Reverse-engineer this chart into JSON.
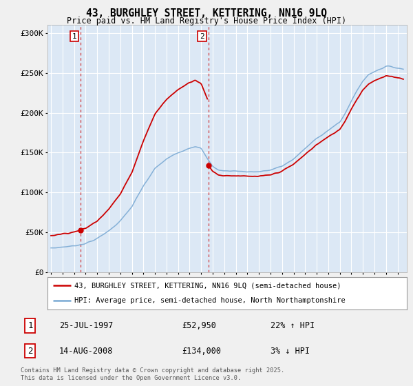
{
  "title": "43, BURGHLEY STREET, KETTERING, NN16 9LQ",
  "subtitle": "Price paid vs. HM Land Registry's House Price Index (HPI)",
  "ylim": [
    0,
    310000
  ],
  "yticks": [
    0,
    50000,
    100000,
    150000,
    200000,
    250000,
    300000
  ],
  "ytick_labels": [
    "£0",
    "£50K",
    "£100K",
    "£150K",
    "£200K",
    "£250K",
    "£300K"
  ],
  "xmin": 1994.7,
  "xmax": 2025.8,
  "bg_color": "#dce8f5",
  "fig_color": "#f0f0f0",
  "grid_color": "#ffffff",
  "red_color": "#cc0000",
  "blue_color": "#7baad4",
  "vline1_x": 1997.56,
  "vline2_x": 2008.62,
  "sale1_x": 1997.56,
  "sale1_price": 52950,
  "sale2_x": 2008.62,
  "sale2_price": 134000,
  "legend_line1": "43, BURGHLEY STREET, KETTERING, NN16 9LQ (semi-detached house)",
  "legend_line2": "HPI: Average price, semi-detached house, North Northamptonshire",
  "t1_date": "25-JUL-1997",
  "t1_price": "£52,950",
  "t1_hpi": "22% ↑ HPI",
  "t2_date": "14-AUG-2008",
  "t2_price": "£134,000",
  "t2_hpi": "3% ↓ HPI",
  "copyright": "Contains HM Land Registry data © Crown copyright and database right 2025.\nThis data is licensed under the Open Government Licence v3.0."
}
